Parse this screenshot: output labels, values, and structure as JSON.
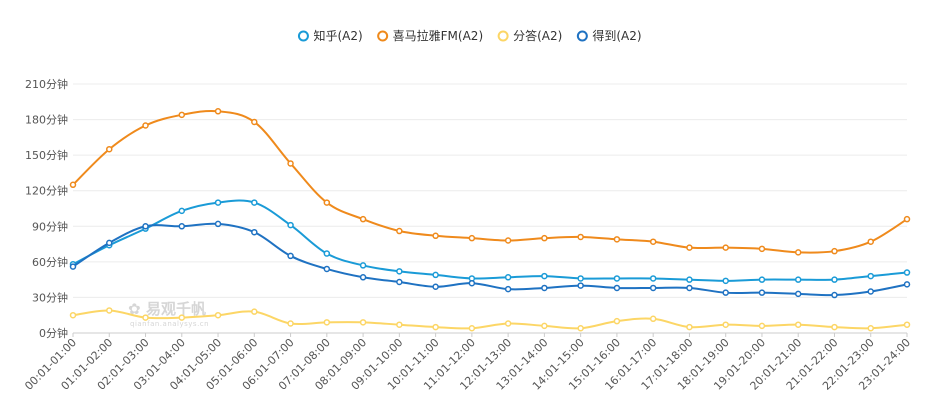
{
  "watermark": {
    "brand": "易观千帆",
    "sub": "qianfan.analysys.cn"
  },
  "chart_data": {
    "type": "line",
    "smooth": true,
    "legend_position": "top-center",
    "grid": {
      "horizontal": true,
      "vertical": false
    },
    "ylim": [
      0,
      210
    ],
    "yticks": [
      0,
      30,
      60,
      90,
      120,
      150,
      180,
      210
    ],
    "ytick_labels": [
      "0分钟",
      "30分钟",
      "60分钟",
      "90分钟",
      "120分钟",
      "150分钟",
      "180分钟",
      "210分钟"
    ],
    "categories": [
      "00:01-01:00",
      "01:01-02:00",
      "02:01-03:00",
      "03:01-04:00",
      "04:01-05:00",
      "05:01-06:00",
      "06:01-07:00",
      "07:01-08:00",
      "08:01-09:00",
      "09:01-10:00",
      "10:01-11:00",
      "11:01-12:00",
      "12:01-13:00",
      "13:01-14:00",
      "14:01-15:00",
      "15:01-16:00",
      "16:01-17:00",
      "17:01-18:00",
      "18:01-19:00",
      "19:01-20:00",
      "20:01-21:00",
      "21:01-22:00",
      "22:01-23:00",
      "23:01-24:00"
    ],
    "series": [
      {
        "name": "知乎(A2)",
        "color": "#1a9bd7",
        "values": [
          58,
          74,
          88,
          103,
          110,
          110,
          91,
          67,
          57,
          52,
          49,
          46,
          47,
          48,
          46,
          46,
          46,
          45,
          44,
          45,
          45,
          45,
          48,
          51
        ]
      },
      {
        "name": "喜马拉雅FM(A2)",
        "color": "#ef8a1c",
        "values": [
          125,
          155,
          175,
          184,
          187,
          178,
          143,
          110,
          96,
          86,
          82,
          80,
          78,
          80,
          81,
          79,
          77,
          72,
          72,
          71,
          68,
          69,
          77,
          96
        ]
      },
      {
        "name": "分答(A2)",
        "color": "#fcd666",
        "values": [
          15,
          19,
          13,
          13,
          15,
          18,
          8,
          9,
          9,
          7,
          5,
          4,
          8,
          6,
          4,
          10,
          12,
          5,
          7,
          6,
          7,
          5,
          4,
          7
        ]
      },
      {
        "name": "得到(A2)",
        "color": "#1f72c2",
        "values": [
          56,
          76,
          90,
          90,
          92,
          85,
          65,
          54,
          47,
          43,
          39,
          42,
          37,
          38,
          40,
          38,
          38,
          38,
          34,
          34,
          33,
          32,
          35,
          41
        ]
      }
    ]
  }
}
